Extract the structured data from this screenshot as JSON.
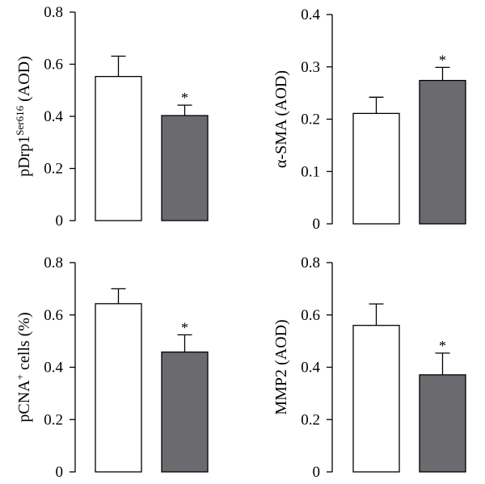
{
  "colors": {
    "control": "#ffffff",
    "treated": "#6b6b6f",
    "stroke": "#000000"
  },
  "chart_data": [
    {
      "type": "bar",
      "ylabel_main": "pDrp1",
      "ylabel_sup": "Ser616",
      "ylabel_tail": " (AOD)",
      "ylim": [
        0,
        0.8
      ],
      "yticks": [
        "0",
        "0.2",
        "0.4",
        "0.6",
        "0.8"
      ],
      "series": [
        {
          "values": [
            0.553,
            0.403
          ],
          "errors": [
            0.078,
            0.04
          ]
        }
      ],
      "annotations": [
        "",
        "*"
      ]
    },
    {
      "type": "bar",
      "ylabel_main": "α-SMA (AOD)",
      "ylabel_sup": "",
      "ylabel_tail": "",
      "ylim": [
        0,
        0.4
      ],
      "yticks": [
        "0",
        "0.1",
        "0.2",
        "0.3",
        "0.4"
      ],
      "series": [
        {
          "values": [
            0.211,
            0.274
          ],
          "errors": [
            0.031,
            0.025
          ]
        }
      ],
      "annotations": [
        "",
        "*"
      ]
    },
    {
      "type": "bar",
      "ylabel_main": "pCNA",
      "ylabel_sup": "+",
      "ylabel_tail": " cells (%)",
      "ylim": [
        0,
        0.8
      ],
      "yticks": [
        "0",
        "0.2",
        "0.4",
        "0.6",
        "0.8"
      ],
      "series": [
        {
          "values": [
            0.643,
            0.458
          ],
          "errors": [
            0.057,
            0.066
          ]
        }
      ],
      "annotations": [
        "",
        "*"
      ]
    },
    {
      "type": "bar",
      "ylabel_main": "MMP2 (AOD)",
      "ylabel_sup": "",
      "ylabel_tail": "",
      "ylim": [
        0,
        0.8
      ],
      "yticks": [
        "0",
        "0.2",
        "0.4",
        "0.6",
        "0.8"
      ],
      "series": [
        {
          "values": [
            0.56,
            0.371
          ],
          "errors": [
            0.082,
            0.083
          ]
        }
      ],
      "annotations": [
        "",
        "*"
      ]
    }
  ]
}
